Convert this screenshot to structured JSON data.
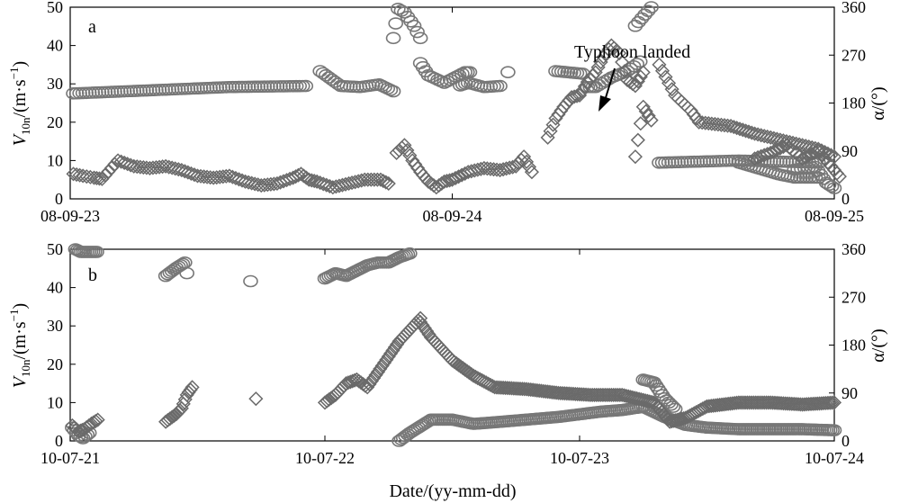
{
  "figure": {
    "xlabel": "Date/(yy-mm-dd)",
    "colors": {
      "marker": "#777777",
      "axis": "#000000"
    },
    "series_markers": {
      "circle-series": "circle",
      "diamond-series": "diamond"
    }
  },
  "chart_data": [
    {
      "type": "scatter",
      "panel_label": "a",
      "xlabel": "",
      "ylabel": "V10n/(m·s−1)",
      "ylabel_parts": {
        "main": "V",
        "sub": "10n",
        "unit": "/(m·s",
        "sup": "−1",
        "close": ")"
      },
      "y2label": "α/(°)",
      "x_ticks": [
        "08-09-23",
        "08-09-24",
        "08-09-25"
      ],
      "xlim_hours": [
        0,
        48
      ],
      "ylim": [
        0,
        50
      ],
      "y_ticks": [
        0,
        10,
        20,
        30,
        40,
        50
      ],
      "y2lim": [
        0,
        360
      ],
      "y2_ticks": [
        0,
        90,
        180,
        270,
        360
      ],
      "grid": false,
      "annotation": {
        "text": "Typhoon landed",
        "x_hours": 36.8,
        "y_deg": 145
      },
      "series": [
        {
          "marker": "circle",
          "axis": "right",
          "segments": [
            [
              [
                0.2,
                198
              ],
              [
                10.0,
                210
              ],
              [
                14.8,
                212
              ]
            ],
            [
              [
                15.7,
                240
              ],
              [
                17.0,
                212
              ],
              [
                18.2,
                210
              ],
              [
                19.4,
                215
              ],
              [
                20.3,
                202
              ]
            ],
            [
              [
                20.3,
                302
              ],
              [
                20.6,
                357
              ],
              [
                21.0,
                350
              ],
              [
                21.6,
                325
              ],
              [
                22.0,
                302
              ]
            ],
            [
              [
                22.0,
                255
              ],
              [
                22.5,
                232
              ],
              [
                23.5,
                218
              ],
              [
                24.8,
                238
              ],
              [
                25.1,
                238
              ]
            ],
            [
              [
                24.5,
                213
              ],
              [
                25.0,
                218
              ],
              [
                26.0,
                210
              ],
              [
                27.0,
                212
              ]
            ],
            [
              [
                27.5,
                238
              ]
            ],
            [
              [
                30.5,
                240
              ],
              [
                32.2,
                235
              ],
              [
                32.5,
                210
              ],
              [
                33.0,
                210
              ],
              [
                34.0,
                228
              ],
              [
                35.0,
                240
              ],
              [
                35.8,
                258
              ]
            ],
            [
              [
                35.5,
                325
              ],
              [
                36.5,
                360
              ]
            ],
            [
              [
                37.0,
                68
              ],
              [
                42.0,
                72
              ],
              [
                47.0,
                68
              ]
            ],
            [
              [
                42.0,
                68
              ],
              [
                44.5,
                46
              ],
              [
                45.5,
                40
              ],
              [
                47.0,
                40
              ]
            ],
            [
              [
                45.5,
                55
              ],
              [
                46.8,
                60
              ],
              [
                47.5,
                30
              ],
              [
                48.0,
                20
              ]
            ]
          ]
        },
        {
          "marker": "diamond",
          "axis": "left",
          "segments": [
            [
              [
                0.2,
                6.5
              ],
              [
                0.8,
                6.0
              ],
              [
                1.5,
                5.5
              ],
              [
                2.0,
                5.2
              ],
              [
                3.0,
                10.0
              ],
              [
                4.0,
                8.5
              ],
              [
                5.0,
                8.0
              ],
              [
                6.0,
                8.5
              ],
              [
                7.0,
                7.5
              ],
              [
                8.0,
                6.0
              ],
              [
                9.0,
                5.5
              ],
              [
                10.0,
                6.0
              ],
              [
                11.0,
                4.5
              ],
              [
                12.0,
                3.5
              ],
              [
                13.0,
                4.0
              ],
              [
                14.0,
                5.5
              ],
              [
                14.5,
                6.5
              ],
              [
                15.0,
                5.0
              ],
              [
                15.5,
                4.5
              ],
              [
                16.5,
                3.0
              ],
              [
                17.5,
                4.0
              ],
              [
                18.5,
                5.0
              ],
              [
                19.5,
                5.0
              ],
              [
                20.0,
                4.0
              ]
            ],
            [
              [
                20.5,
                12.0
              ],
              [
                21.0,
                14.0
              ],
              [
                21.5,
                10.0
              ],
              [
                22.0,
                7.0
              ],
              [
                22.5,
                4.5
              ],
              [
                23.0,
                3.0
              ],
              [
                23.5,
                4.5
              ],
              [
                24.0,
                5.0
              ],
              [
                25.0,
                7.0
              ],
              [
                26.0,
                8.0
              ],
              [
                27.0,
                7.5
              ],
              [
                28.0,
                8.5
              ],
              [
                28.5,
                11.0
              ],
              [
                29.0,
                7.0
              ]
            ],
            [
              [
                30.0,
                16.0
              ],
              [
                30.5,
                21.0
              ],
              [
                31.0,
                24.0
              ],
              [
                31.5,
                26.5
              ],
              [
                32.0,
                27.0
              ],
              [
                32.5,
                30.5
              ],
              [
                33.0,
                33.0
              ],
              [
                33.5,
                37.0
              ],
              [
                34.0,
                40.0
              ],
              [
                34.5,
                38.0
              ],
              [
                35.0,
                31.0
              ],
              [
                35.5,
                29.5
              ],
              [
                36.0,
                33.0
              ]
            ],
            [
              [
                35.5,
                11.0
              ],
              [
                36.0,
                24.0
              ],
              [
                36.5,
                20.5
              ]
            ],
            [
              [
                37.0,
                35.0
              ],
              [
                38.0,
                27.0
              ],
              [
                39.0,
                23.0
              ],
              [
                39.5,
                20.0
              ],
              [
                40.5,
                19.5
              ],
              [
                41.5,
                19.0
              ],
              [
                43.0,
                17.0
              ],
              [
                45.0,
                15.0
              ],
              [
                47.0,
                13.0
              ],
              [
                48.0,
                11.0
              ]
            ],
            [
              [
                43.0,
                10.5
              ],
              [
                44.0,
                12.0
              ],
              [
                45.0,
                14.0
              ],
              [
                46.0,
                10.5
              ],
              [
                47.0,
                12.5
              ],
              [
                48.0,
                7.5
              ],
              [
                48.5,
                5.0
              ]
            ]
          ]
        }
      ]
    },
    {
      "type": "scatter",
      "panel_label": "b",
      "xlabel": "Date/(yy-mm-dd)",
      "ylabel": "V10n/(m·s−1)",
      "ylabel_parts": {
        "main": "V",
        "sub": "10n",
        "unit": "/(m·s",
        "sup": "−1",
        "close": ")"
      },
      "y2label": "α/(°)",
      "x_ticks": [
        "10-07-21",
        "10-07-22",
        "10-07-23",
        "10-07-24"
      ],
      "xlim_hours": [
        0,
        72
      ],
      "ylim": [
        0,
        50
      ],
      "y_ticks": [
        0,
        10,
        20,
        30,
        40,
        50
      ],
      "y2lim": [
        0,
        360
      ],
      "y2_ticks": [
        0,
        90,
        180,
        270,
        360
      ],
      "grid": false,
      "series": [
        {
          "marker": "circle",
          "axis": "right",
          "segments": [
            [
              [
                0.5,
                360
              ],
              [
                1.0,
                355
              ],
              [
                2.5,
                355
              ]
            ],
            [
              [
                9.0,
                310
              ],
              [
                10.0,
                325
              ],
              [
                10.8,
                335
              ],
              [
                11.0,
                315
              ]
            ],
            [
              [
                17.0,
                300
              ]
            ],
            [
              [
                24.0,
                305
              ],
              [
                25.0,
                315
              ],
              [
                26.0,
                310
              ],
              [
                27.0,
                320
              ],
              [
                28.0,
                330
              ],
              [
                29.0,
                335
              ],
              [
                30.0,
                335
              ],
              [
                31.0,
                345
              ],
              [
                32.0,
                352
              ]
            ],
            [
              [
                31.0,
                0
              ],
              [
                32.0,
                15
              ],
              [
                34.0,
                40
              ],
              [
                36.0,
                40
              ],
              [
                38.0,
                32
              ],
              [
                40.0,
                35
              ],
              [
                43.0,
                40
              ],
              [
                46.0,
                45
              ],
              [
                48.0,
                50
              ],
              [
                50.0,
                55
              ],
              [
                52.0,
                58
              ],
              [
                54.0,
                64
              ],
              [
                56.0,
                45
              ],
              [
                58.0,
                30
              ],
              [
                60.0,
                25
              ],
              [
                63.0,
                22
              ],
              [
                66.0,
                22
              ],
              [
                69.0,
                22
              ],
              [
                72.0,
                20
              ]
            ],
            [
              [
                54.0,
                115
              ],
              [
                55.0,
                110
              ],
              [
                56.0,
                80
              ],
              [
                57.0,
                60
              ]
            ],
            [
              [
                0.2,
                25
              ],
              [
                0.8,
                10
              ],
              [
                1.2,
                5
              ],
              [
                1.8,
                15
              ]
            ]
          ]
        },
        {
          "marker": "diamond",
          "axis": "left",
          "segments": [
            [
              [
                0.2,
                4.0
              ],
              [
                0.8,
                2.5
              ],
              [
                1.3,
                3.0
              ],
              [
                2.0,
                4.5
              ],
              [
                2.6,
                5.5
              ]
            ],
            [
              [
                9.0,
                5.0
              ],
              [
                10.0,
                7.0
              ],
              [
                10.5,
                8.5
              ],
              [
                11.0,
                12.0
              ],
              [
                11.5,
                14.0
              ]
            ],
            [
              [
                17.5,
                11.0
              ]
            ],
            [
              [
                24.0,
                10.0
              ],
              [
                25.0,
                12.0
              ],
              [
                26.0,
                15.0
              ],
              [
                27.0,
                16.0
              ],
              [
                28.0,
                14.0
              ],
              [
                29.0,
                18.0
              ],
              [
                30.0,
                22.0
              ],
              [
                31.0,
                26.0
              ],
              [
                32.0,
                29.0
              ],
              [
                33.0,
                32.0
              ]
            ],
            [
              [
                33.0,
                31.0
              ],
              [
                34.0,
                27.0
              ],
              [
                36.0,
                21.0
              ],
              [
                38.0,
                17.0
              ],
              [
                40.0,
                14.0
              ],
              [
                43.0,
                13.5
              ],
              [
                46.0,
                12.5
              ],
              [
                49.0,
                12.0
              ],
              [
                52.0,
                12.0
              ],
              [
                55.0,
                10.0
              ],
              [
                56.5,
                5.0
              ],
              [
                58.0,
                6.0
              ],
              [
                60.0,
                9.0
              ],
              [
                63.0,
                10.0
              ],
              [
                66.0,
                10.0
              ],
              [
                69.0,
                9.5
              ],
              [
                72.0,
                10.0
              ]
            ]
          ]
        }
      ]
    }
  ]
}
